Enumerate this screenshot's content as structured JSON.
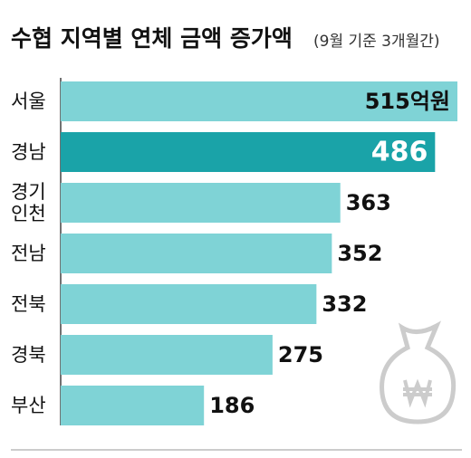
{
  "chart_data": {
    "type": "bar",
    "orientation": "horizontal",
    "title": "수협 지역별 연체 금액 증가액",
    "subtitle": "(9월 기준 3개월간)",
    "categories": [
      "서울",
      "경남",
      "경기\n인천",
      "전남",
      "전북",
      "경북",
      "부산"
    ],
    "values": [
      515,
      486,
      363,
      352,
      332,
      275,
      186
    ],
    "value_labels": [
      "515억원",
      "486",
      "363",
      "352",
      "332",
      "275",
      "186"
    ],
    "colors": [
      "#7fd3d6",
      "#1aa3a8",
      "#7fd3d6",
      "#7fd3d6",
      "#7fd3d6",
      "#7fd3d6",
      "#7fd3d6"
    ]
  }
}
